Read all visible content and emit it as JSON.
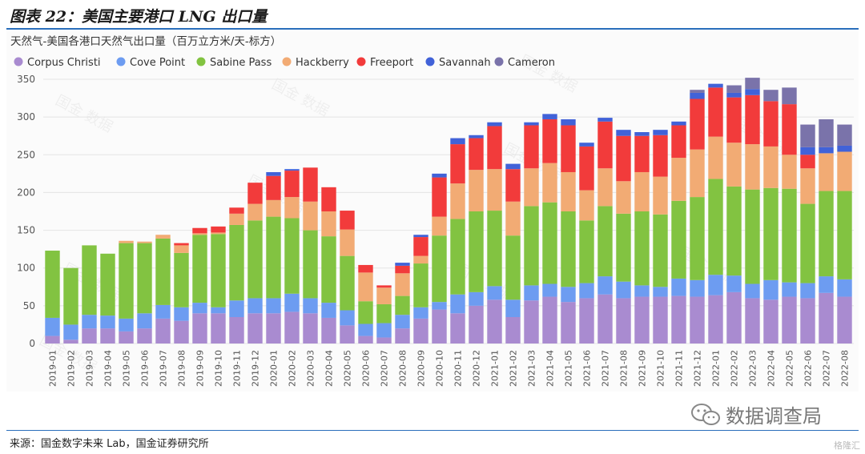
{
  "header": {
    "title": "图表 22：美国主要港口 LNG 出口量"
  },
  "footer": {
    "source": "来源：国金数字未来 Lab，国金证券研究所",
    "brand": "数据调查局",
    "corner": "格隆汇"
  },
  "colors": {
    "accent": "#2a6ebb",
    "grid": "#e4e4e4",
    "series": [
      "#a98bd0",
      "#6d9cf1",
      "#82c341",
      "#f2ab74",
      "#f23b3b",
      "#4162d8",
      "#7a73aa"
    ]
  },
  "chart_data": {
    "type": "stacked-bar",
    "title": "天然气-美国各港口天然气出口量（百万立方米/天-标方）",
    "ylim": [
      0,
      350
    ],
    "yticks": [
      0,
      50,
      100,
      150,
      200,
      250,
      300,
      350
    ],
    "grid": "horizontal",
    "legend_position": "top-left",
    "categories": [
      "2019-01",
      "2019-02",
      "2019-03",
      "2019-04",
      "2019-05",
      "2019-06",
      "2019-07",
      "2019-08",
      "2019-09",
      "2019-10",
      "2019-11",
      "2019-12",
      "2020-01",
      "2020-02",
      "2020-03",
      "2020-04",
      "2020-05",
      "2020-06",
      "2020-07",
      "2020-08",
      "2020-09",
      "2020-10",
      "2020-11",
      "2020-12",
      "2021-01",
      "2021-02",
      "2021-03",
      "2021-04",
      "2021-05",
      "2021-06",
      "2021-07",
      "2021-08",
      "2021-09",
      "2021-10",
      "2021-11",
      "2021-12",
      "2022-01",
      "2022-02",
      "2022-03",
      "2022-04",
      "2022-05",
      "2022-06",
      "2022-07",
      "2022-08"
    ],
    "series": [
      {
        "name": "Corpus Christi",
        "values": [
          10,
          5,
          20,
          20,
          16,
          20,
          33,
          30,
          40,
          40,
          35,
          40,
          40,
          42,
          40,
          34,
          24,
          10,
          8,
          20,
          33,
          45,
          40,
          50,
          58,
          35,
          57,
          62,
          55,
          60,
          65,
          60,
          62,
          62,
          63,
          62,
          64,
          68,
          60,
          58,
          62,
          60,
          67,
          62
        ]
      },
      {
        "name": "Cove Point",
        "values": [
          24,
          20,
          18,
          17,
          17,
          20,
          18,
          18,
          14,
          8,
          22,
          20,
          20,
          24,
          20,
          20,
          20,
          16,
          19,
          18,
          15,
          10,
          25,
          18,
          18,
          23,
          20,
          17,
          20,
          20,
          24,
          22,
          15,
          13,
          23,
          22,
          27,
          22,
          19,
          26,
          19,
          20,
          22,
          23
        ]
      },
      {
        "name": "Sabine Pass",
        "values": [
          89,
          75,
          92,
          82,
          100,
          93,
          88,
          72,
          90,
          97,
          100,
          103,
          108,
          100,
          90,
          88,
          72,
          30,
          25,
          25,
          58,
          88,
          100,
          107,
          100,
          85,
          105,
          108,
          100,
          83,
          93,
          90,
          98,
          96,
          103,
          110,
          127,
          118,
          125,
          122,
          124,
          105,
          113,
          117
        ]
      },
      {
        "name": "Hackberry",
        "values": [
          0,
          0,
          0,
          0,
          3,
          2,
          5,
          10,
          2,
          2,
          15,
          22,
          22,
          28,
          38,
          33,
          35,
          38,
          22,
          30,
          10,
          25,
          47,
          55,
          55,
          45,
          50,
          52,
          52,
          40,
          50,
          43,
          52,
          50,
          57,
          63,
          56,
          58,
          60,
          55,
          45,
          47,
          50,
          52
        ]
      },
      {
        "name": "Freeport",
        "values": [
          0,
          0,
          0,
          0,
          0,
          0,
          0,
          3,
          7,
          8,
          8,
          28,
          32,
          35,
          45,
          32,
          25,
          10,
          3,
          10,
          25,
          52,
          52,
          42,
          57,
          43,
          57,
          58,
          62,
          58,
          62,
          60,
          48,
          55,
          43,
          67,
          65,
          60,
          65,
          60,
          67,
          18,
          0,
          0
        ]
      },
      {
        "name": "Savannah",
        "values": [
          0,
          0,
          0,
          0,
          0,
          0,
          0,
          0,
          0,
          0,
          0,
          0,
          5,
          2,
          0,
          0,
          0,
          0,
          0,
          4,
          3,
          5,
          8,
          4,
          5,
          7,
          4,
          7,
          8,
          5,
          5,
          8,
          5,
          7,
          5,
          8,
          5,
          6,
          8,
          0,
          0,
          10,
          8,
          8
        ]
      },
      {
        "name": "Cameron",
        "values": [
          0,
          0,
          0,
          0,
          0,
          0,
          0,
          0,
          0,
          0,
          0,
          0,
          0,
          0,
          0,
          0,
          0,
          0,
          0,
          0,
          0,
          0,
          0,
          0,
          0,
          0,
          0,
          0,
          0,
          0,
          0,
          0,
          0,
          0,
          0,
          4,
          0,
          10,
          15,
          15,
          22,
          30,
          37,
          28
        ]
      }
    ]
  },
  "watermark": "国金 数据"
}
